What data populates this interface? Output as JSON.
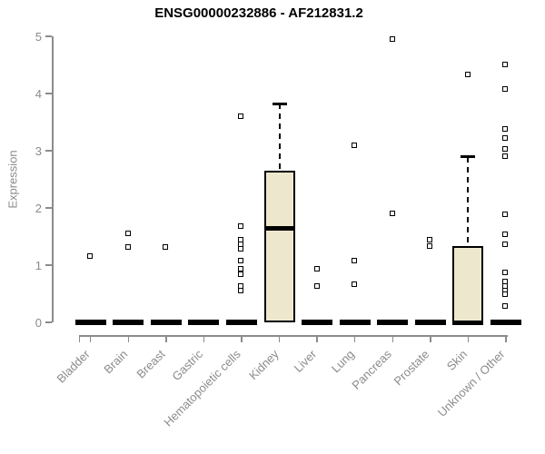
{
  "title": "ENSG00000232886 - AF212831.2",
  "chart_data": {
    "type": "boxplot",
    "title": "ENSG00000232886 - AF212831.2",
    "xlabel": "",
    "ylabel": "Expression",
    "ylim": [
      0,
      5
    ],
    "yticks": [
      0,
      1,
      2,
      3,
      4,
      5
    ],
    "grid": false,
    "legend": false,
    "categories": [
      "Bladder",
      "Brain",
      "Breast",
      "Gastric",
      "Hematopoietic cells",
      "Kidney",
      "Liver",
      "Lung",
      "Pancreas",
      "Prostate",
      "Skin",
      "Unknown / Other"
    ],
    "boxes": [
      {
        "name": "Bladder",
        "q1": 0,
        "median": 0,
        "q3": 0,
        "whisker_low": 0,
        "whisker_high": 0,
        "outliers": [
          1.15
        ]
      },
      {
        "name": "Brain",
        "q1": 0,
        "median": 0,
        "q3": 0,
        "whisker_low": 0,
        "whisker_high": 0,
        "outliers": [
          1.55,
          1.31
        ]
      },
      {
        "name": "Breast",
        "q1": 0,
        "median": 0,
        "q3": 0,
        "whisker_low": 0,
        "whisker_high": 0,
        "outliers": [
          1.31
        ]
      },
      {
        "name": "Gastric",
        "q1": 0,
        "median": 0,
        "q3": 0,
        "whisker_low": 0,
        "whisker_high": 0,
        "outliers": []
      },
      {
        "name": "Hematopoietic cells",
        "q1": 0,
        "median": 0,
        "q3": 0,
        "whisker_low": 0,
        "whisker_high": 0,
        "outliers": [
          3.59,
          1.68,
          1.44,
          1.36,
          1.28,
          1.07,
          0.93,
          0.83,
          0.63,
          0.54
        ]
      },
      {
        "name": "Kidney",
        "q1": 0,
        "median": 1.64,
        "q3": 2.65,
        "whisker_low": 0,
        "whisker_high": 3.82,
        "outliers": []
      },
      {
        "name": "Liver",
        "q1": 0,
        "median": 0,
        "q3": 0,
        "whisker_low": 0,
        "whisker_high": 0,
        "outliers": [
          0.93,
          0.62
        ]
      },
      {
        "name": "Lung",
        "q1": 0,
        "median": 0,
        "q3": 0,
        "whisker_low": 0,
        "whisker_high": 0,
        "outliers": [
          3.08,
          1.07,
          0.66
        ]
      },
      {
        "name": "Pancreas",
        "q1": 0,
        "median": 0,
        "q3": 0,
        "whisker_low": 0,
        "whisker_high": 0,
        "outliers": [
          4.95,
          1.89
        ]
      },
      {
        "name": "Prostate",
        "q1": 0,
        "median": 0,
        "q3": 0,
        "whisker_low": 0,
        "whisker_high": 0,
        "outliers": [
          1.44,
          1.33
        ]
      },
      {
        "name": "Skin",
        "q1": 0,
        "median": 0,
        "q3": 1.34,
        "whisker_low": 0,
        "whisker_high": 2.89,
        "outliers": [
          4.32
        ]
      },
      {
        "name": "Unknown / Other",
        "q1": 0,
        "median": 0,
        "q3": 0,
        "whisker_low": 0,
        "whisker_high": 0,
        "outliers": [
          4.5,
          4.07,
          3.38,
          3.22,
          3.03,
          2.9,
          1.88,
          1.53,
          1.35,
          0.86,
          0.7,
          0.63,
          0.55,
          0.49,
          0.28
        ]
      }
    ],
    "colors": {
      "box_fill": "#EDE8CD",
      "box_border": "#000000",
      "median": "#000000",
      "outlier_border": "#000000",
      "outlier_fill": "#FFFFFF",
      "axis": "#8B8B8B",
      "tick_label": "#8B8B8B",
      "title": "#000000",
      "background": "#FFFFFF"
    }
  }
}
